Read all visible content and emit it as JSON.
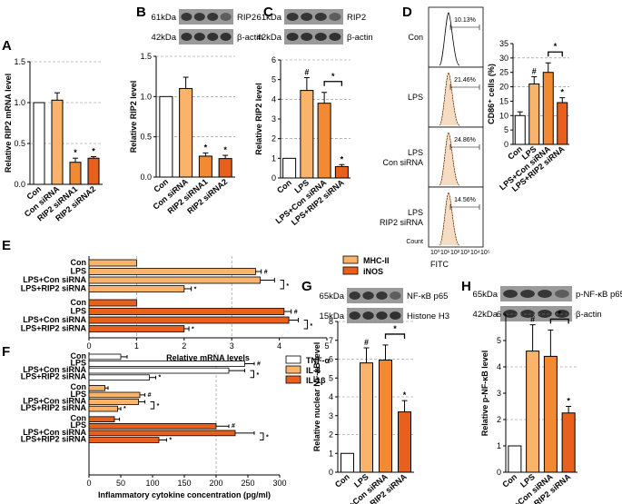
{
  "colors": {
    "white": "#ffffff",
    "light": "#f9b36a",
    "mid": "#f28a33",
    "dark": "#e8601c",
    "flow_fill": "#f7dcc4",
    "flow_line": "#f0a46a"
  },
  "panel_letters": [
    "A",
    "B",
    "C",
    "D",
    "E",
    "F",
    "G",
    "H"
  ],
  "blots": {
    "B": {
      "marker_top": "61kDa",
      "marker_bottom": "42kDa",
      "protein_top": "RIP2",
      "protein_bottom": "β-actin"
    },
    "C": {
      "marker_top": "61kDa",
      "marker_bottom": "42kDa",
      "protein_top": "RIP2",
      "protein_bottom": "β-actin"
    },
    "G": {
      "marker_top": "65kDa",
      "marker_bottom": "15kDa",
      "protein_top": "NF-κB p65",
      "protein_bottom": "Histone  H3"
    },
    "H": {
      "marker_top": "65kDa",
      "marker_bottom": "42kDa",
      "protein_top": "p-NF-κB p65",
      "protein_bottom": "β-actin"
    }
  },
  "flow": {
    "rows": [
      {
        "label_lines": [
          "Con"
        ],
        "percent": "10.13%"
      },
      {
        "label_lines": [
          "LPS"
        ],
        "percent": "21.46%"
      },
      {
        "label_lines": [
          "LPS",
          "Con siRNA"
        ],
        "percent": "24.86%"
      },
      {
        "label_lines": [
          "LPS",
          "RIP2 siRNA"
        ],
        "percent": "14.56%"
      }
    ],
    "xlabel": "FITC",
    "ylabel": "Count",
    "xticks": [
      "10⁰",
      "10¹",
      "10²",
      "10³",
      "10⁴",
      "10⁵"
    ]
  },
  "sig": {
    "hash": "#",
    "star": "*"
  },
  "chart_data": [
    {
      "panel": "A",
      "type": "bar",
      "categories": [
        "Con",
        "Con siRNA",
        "RIP2 siRNA1",
        "RIP2 siRNA2"
      ],
      "values": [
        1.0,
        1.03,
        0.27,
        0.32
      ],
      "errors": [
        0,
        0.09,
        0.05,
        0.02
      ],
      "ylabel": "Relative RIP2 mRNA level",
      "ylim": [
        0,
        1.5
      ],
      "yticks": [
        "0.0",
        "0.5",
        "1.0",
        "1.5"
      ],
      "marks": [
        "",
        "",
        "*",
        "*"
      ]
    },
    {
      "panel": "B",
      "type": "bar",
      "categories": [
        "Con",
        "Con siRNA",
        "RIP2 siRNA1",
        "RIP2 siRNA2"
      ],
      "values": [
        1.0,
        1.1,
        0.26,
        0.23
      ],
      "errors": [
        0,
        0.14,
        0.04,
        0.04
      ],
      "ylabel": "Relative RIP2 level",
      "ylim": [
        0,
        1.5
      ],
      "yticks": [
        "0.0",
        "0.5",
        "1.0",
        "1.5"
      ],
      "marks": [
        "",
        "",
        "*",
        "*"
      ]
    },
    {
      "panel": "C",
      "type": "bar",
      "categories": [
        "Con",
        "LPS",
        "LPS+Con siRNA",
        "LPS+RIP2 siRNA"
      ],
      "values": [
        1.0,
        4.45,
        3.8,
        0.58
      ],
      "errors": [
        0,
        0.65,
        0.55,
        0.1
      ],
      "ylabel": "Relative RIP2 level",
      "ylim": [
        0,
        6
      ],
      "yticks": [
        "0",
        "1",
        "2",
        "3",
        "4",
        "5",
        "6"
      ],
      "marks": [
        "",
        "#",
        "",
        "*"
      ],
      "bracket": [
        2,
        3
      ]
    },
    {
      "panel": "D",
      "type": "bar",
      "categories": [
        "Con",
        "LPS",
        "LPS+Con siRNA",
        "LPS+RIP2 siRNA"
      ],
      "values": [
        10.0,
        21.0,
        25.0,
        14.5
      ],
      "errors": [
        1.3,
        2.5,
        3.3,
        1.7
      ],
      "ylabel": "CD86⁺ cells (%)",
      "ylim": [
        0,
        35
      ],
      "yticks": [
        "0",
        "5",
        "10",
        "15",
        "20",
        "25",
        "30",
        "35"
      ],
      "marks": [
        "",
        "#",
        "",
        "*"
      ],
      "bracket": [
        2,
        3
      ]
    },
    {
      "panel": "E",
      "type": "bar",
      "orientation": "horizontal",
      "groups": [
        {
          "name": "MHC-II",
          "categories": [
            "Con",
            "LPS",
            "LPS+Con siRNA",
            "LPS+RIP2 siRNA"
          ],
          "values": [
            1.0,
            3.5,
            3.6,
            2.0
          ],
          "errors": [
            0,
            0.12,
            0.3,
            0.15
          ],
          "marks": [
            "",
            "#",
            "",
            "*"
          ]
        },
        {
          "name": "iNOS",
          "categories": [
            "Con",
            "LPS",
            "LPS+Con siRNA",
            "LPS+RIP2 siRNA"
          ],
          "values": [
            1.0,
            4.1,
            4.2,
            2.0
          ],
          "errors": [
            0,
            0.15,
            0.2,
            0.1
          ],
          "marks": [
            "",
            "#",
            "",
            "*"
          ]
        }
      ],
      "xlabel": "Relative mRNA levels",
      "xlim": [
        0,
        5
      ],
      "xticks": [
        "0",
        "1",
        "2",
        "3",
        "4",
        "5"
      ]
    },
    {
      "panel": "F",
      "type": "bar",
      "orientation": "horizontal",
      "groups": [
        {
          "name": "TNF-α",
          "categories": [
            "Con",
            "LPS",
            "LPS+Con siRNA",
            "LPS+RIP2 siRNA"
          ],
          "values": [
            50,
            245,
            220,
            95
          ],
          "errors": [
            10,
            15,
            25,
            10
          ],
          "marks": [
            "",
            "#",
            "",
            "*"
          ]
        },
        {
          "name": "IL-6",
          "categories": [
            "Con",
            "LPS",
            "LPS+Con siRNA",
            "LPS+RIP2 siRNA"
          ],
          "values": [
            25,
            80,
            78,
            45
          ],
          "errors": [
            5,
            8,
            10,
            5
          ],
          "marks": [
            "",
            "#",
            "",
            "*"
          ]
        },
        {
          "name": "IL-1β",
          "categories": [
            "Con",
            "LPS",
            "LPS+Con siRNA",
            "LPS+RIP2 siRNA"
          ],
          "values": [
            40,
            200,
            230,
            110
          ],
          "errors": [
            8,
            20,
            30,
            12
          ],
          "marks": [
            "",
            "#",
            "",
            "*"
          ]
        }
      ],
      "xlabel": "Inflammatory cytokine concentration (pg/ml)",
      "xlim": [
        0,
        300
      ],
      "xticks": [
        "0",
        "50",
        "100",
        "150",
        "200",
        "250",
        "300"
      ]
    },
    {
      "panel": "G",
      "type": "bar",
      "categories": [
        "Con",
        "LPS",
        "LPS+Con siRNA",
        "LPS+RIP2 siRNA"
      ],
      "values": [
        1.0,
        5.8,
        5.95,
        3.2
      ],
      "errors": [
        0,
        0.8,
        0.8,
        0.6
      ],
      "ylabel": "Relative nuclear NF-κB level",
      "ylim": [
        0,
        8
      ],
      "yticks": [
        "0",
        "1",
        "2",
        "3",
        "4",
        "5",
        "6",
        "7",
        "8"
      ],
      "marks": [
        "",
        "#",
        "",
        "*"
      ],
      "bracket": [
        2,
        3
      ]
    },
    {
      "panel": "H",
      "type": "bar",
      "categories": [
        "Con",
        "LPS",
        "LPS+Con siRNA",
        "LPS+RIP2 siRNA"
      ],
      "values": [
        1.0,
        4.6,
        4.4,
        2.25
      ],
      "errors": [
        0,
        1.0,
        1.0,
        0.25
      ],
      "ylabel": "Relative p-NF-κB level",
      "ylim": [
        0,
        6
      ],
      "yticks": [
        "0",
        "1",
        "2",
        "3",
        "4",
        "5",
        "6"
      ],
      "marks": [
        "",
        "#",
        "",
        "*"
      ],
      "bracket": [
        2,
        3
      ]
    }
  ]
}
